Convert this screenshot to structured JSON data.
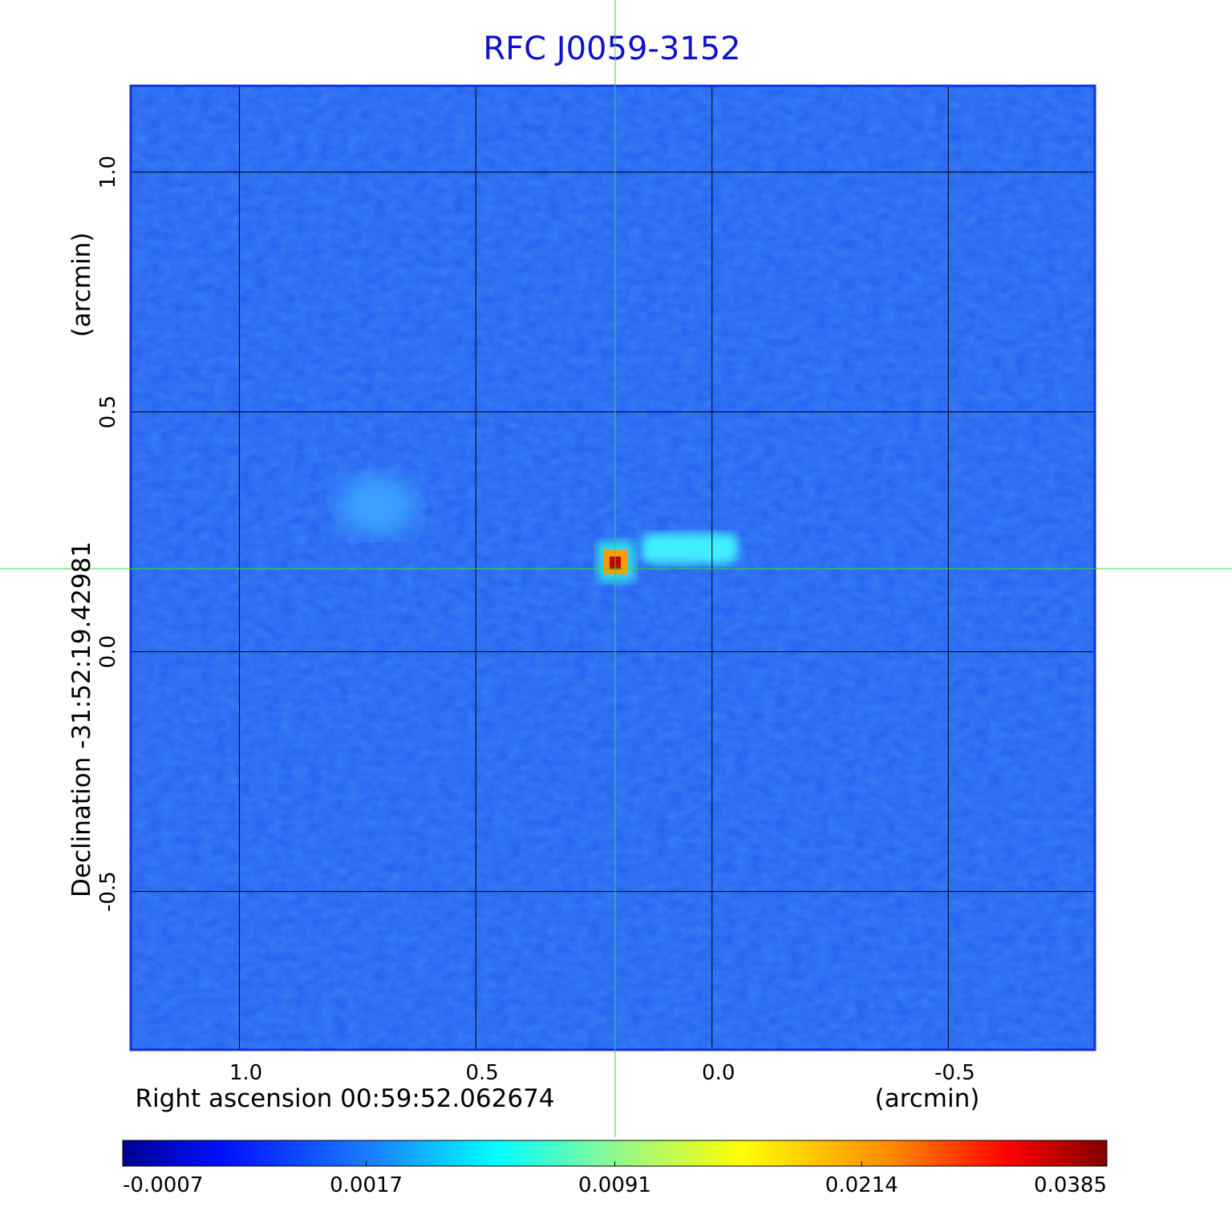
{
  "chart_data": {
    "type": "image",
    "title": "RFC J0059-3152",
    "x_label": "Right ascension  00:59:52.062674",
    "x_unit": "(arcmin)",
    "y_label": "Declination  -31:52:19.42981",
    "y_unit": "(arcmin)",
    "xlim": [
      1.23,
      -0.81
    ],
    "ylim": [
      -0.83,
      1.18
    ],
    "xticks": [
      {
        "value": 1.0,
        "label": "1.0"
      },
      {
        "value": 0.5,
        "label": "0.5"
      },
      {
        "value": 0.0,
        "label": "0.0"
      },
      {
        "value": -0.5,
        "label": "-0.5"
      }
    ],
    "yticks": [
      {
        "value": -0.5,
        "label": "-0.5"
      },
      {
        "value": 0.0,
        "label": "0.0"
      },
      {
        "value": 0.5,
        "label": "0.5"
      },
      {
        "value": 1.0,
        "label": "1.0"
      }
    ],
    "grid": true,
    "colorbar_lim": [
      -0.0007,
      0.0385
    ],
    "colorbar_scale": "sqrt",
    "colorbar_ticks": [
      -0.0007,
      0.0017,
      0.0091,
      0.0214,
      0.0385
    ]
  }
}
